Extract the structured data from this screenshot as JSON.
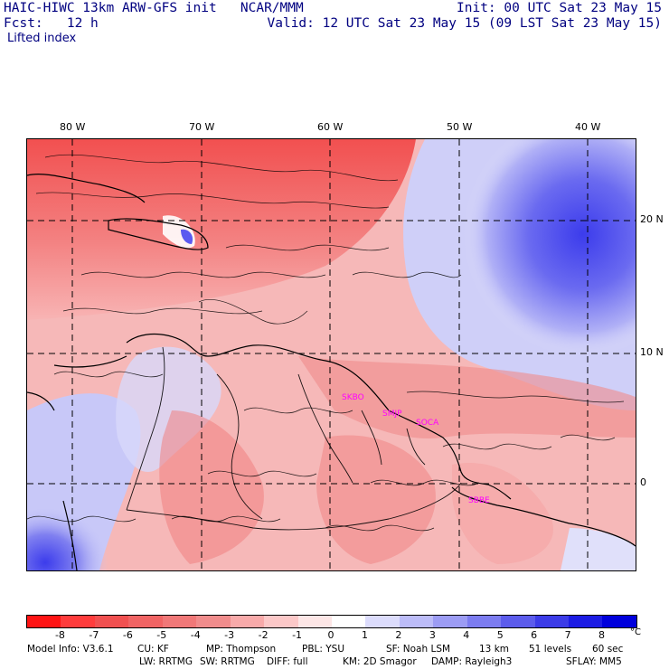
{
  "header": {
    "title": "HAIC-HIWC 13km ARW-GFS init   NCAR/MMM",
    "fcst": "Fcst:   12 h",
    "field": "Lifted index",
    "init": "Init: 00 UTC Sat 23 May 15",
    "valid": "Valid: 12 UTC Sat 23 May 15 (09 LST Sat 23 May 15)"
  },
  "map": {
    "lon_labels": [
      "80 W",
      "70 W",
      "60 W",
      "50 W",
      "40 W"
    ],
    "lat_labels": [
      "20 N",
      "10 N",
      "0"
    ],
    "sites": [
      "SKBO",
      "SMJP",
      "SOCA",
      "SBBE"
    ],
    "colors": {
      "red_strong": "#f04848",
      "red_mid": "#f08080",
      "red_light": "#f8b0b0",
      "pink": "#fcd6d6",
      "blue_light": "#c8c8f8",
      "blue_mid": "#7070f0",
      "blue_strong": "#3c3cec",
      "contour": "#000000",
      "grid": "#000000",
      "border": "#000000",
      "site": "#ff00ff"
    }
  },
  "colorbar": {
    "labels": [
      "-8",
      "-7",
      "-6",
      "-5",
      "-4",
      "-3",
      "-2",
      "-1",
      "0",
      "1",
      "2",
      "3",
      "4",
      "5",
      "6",
      "7",
      "8"
    ],
    "colors": [
      "#ff1414",
      "#ff3c3c",
      "#f05050",
      "#f06464",
      "#f07878",
      "#f08c8c",
      "#f8aaaa",
      "#fcc8c8",
      "#fde6e6",
      "#ffffff",
      "#dcdcfc",
      "#bcbcf8",
      "#9c9cf4",
      "#7c7cf0",
      "#5c5cec",
      "#3c3ce8",
      "#1c1ce4",
      "#0000dc"
    ],
    "unit": "°C"
  },
  "footer": {
    "line1": [
      "Model Info: V3.6.1",
      "CU: KF",
      "MP: Thompson",
      "PBL: YSU",
      "SF: Noah LSM",
      "13 km",
      "51 levels",
      "60 sec"
    ],
    "line2": [
      "LW: RRTMG",
      "SW: RRTMG",
      "DIFF: full",
      "KM: 2D Smagor",
      "DAMP: Rayleigh3",
      "SFLAY: MM5"
    ]
  }
}
